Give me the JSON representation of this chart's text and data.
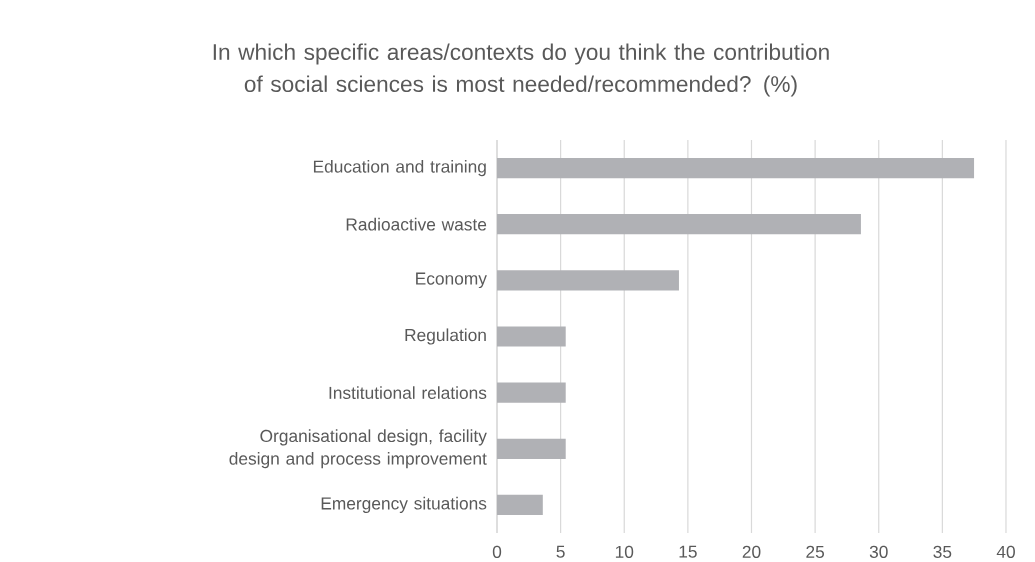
{
  "chart_data": {
    "type": "bar",
    "orientation": "horizontal",
    "title": "In which specific areas/contexts do you think the contribution of social sciences is most needed/recommended? (%)",
    "categories": [
      "Education and training",
      "Radioactive waste",
      "Economy",
      "Regulation",
      "Institutional relations",
      "Organisational design, facility design and process improvement",
      "Emergency situations"
    ],
    "values": [
      37.5,
      28.6,
      14.3,
      5.4,
      5.4,
      5.4,
      3.6
    ],
    "color": "#b0b1b5",
    "xlim": [
      0,
      40
    ],
    "xticks": [
      0,
      5,
      10,
      15,
      20,
      25,
      30,
      35,
      40
    ],
    "grid": "x"
  }
}
